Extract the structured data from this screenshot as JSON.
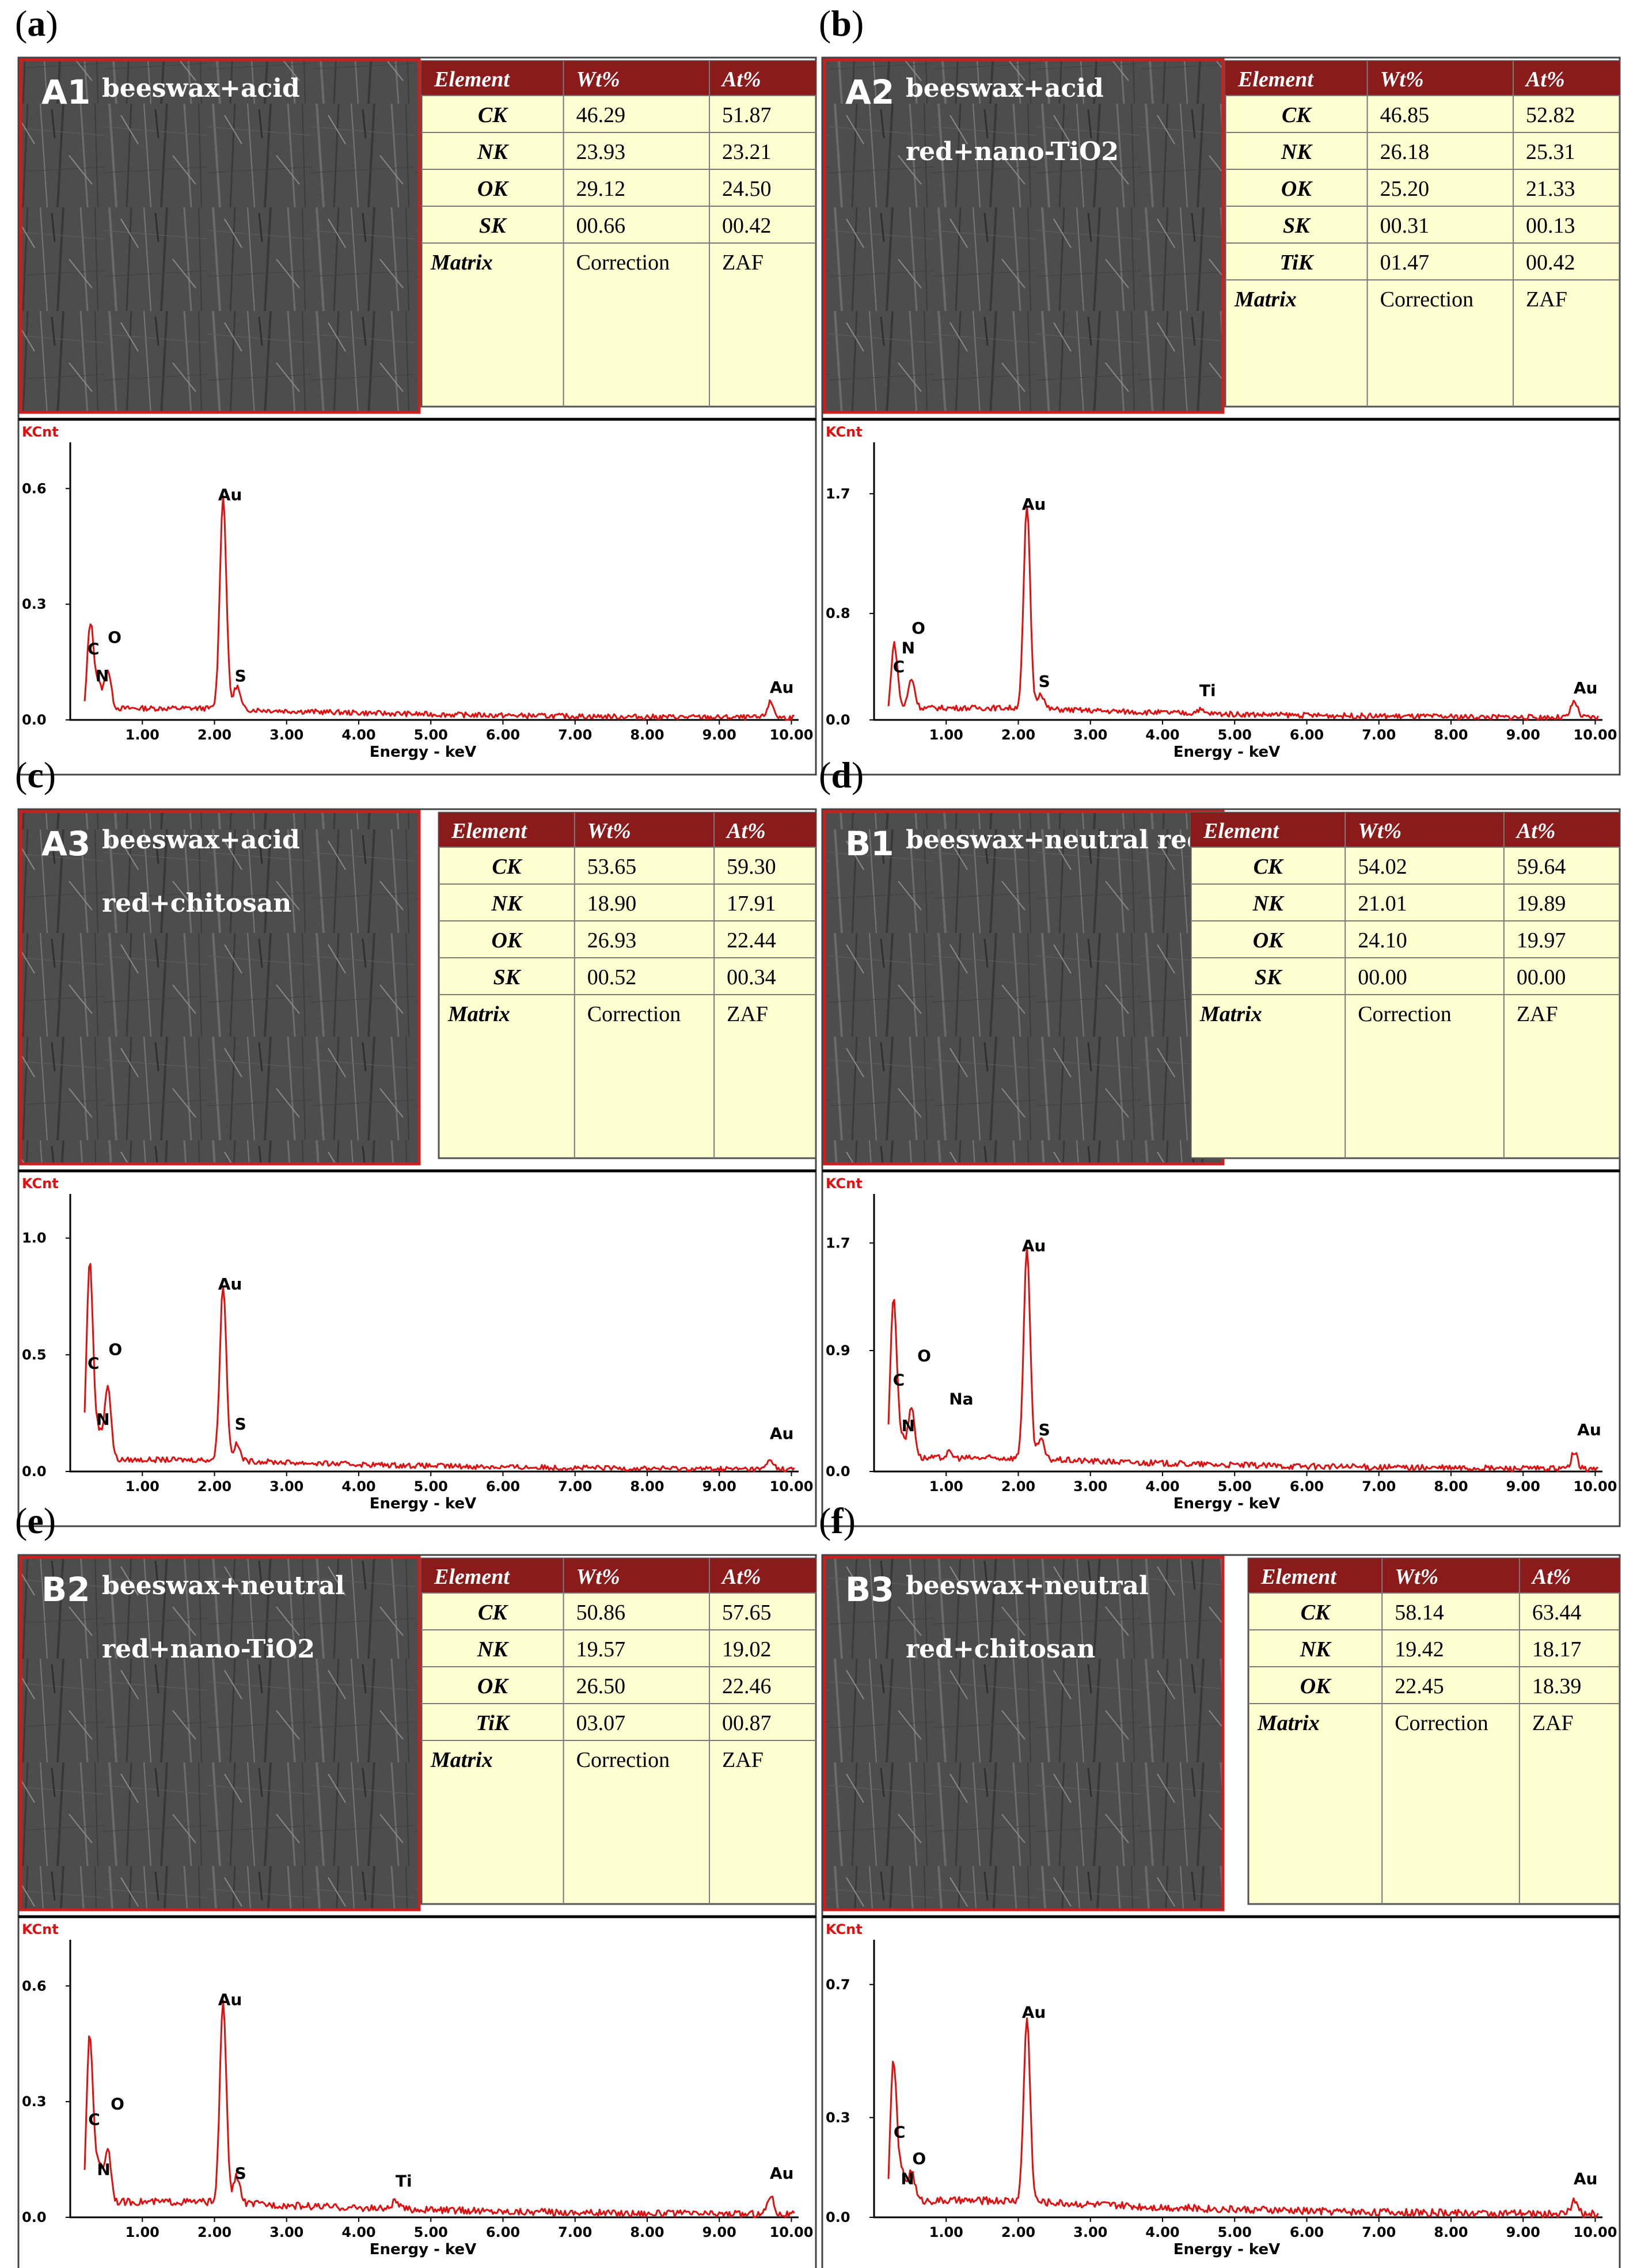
{
  "colors": {
    "accent": "#8b1a1a",
    "table_body": "#fefed0",
    "spectrum": "#e01010",
    "sem_border": "#cc2020"
  },
  "panels": [
    {
      "label": "(a)",
      "letter": "a",
      "sample_id": "A1",
      "sample_lines": [
        "beeswax+acid"
      ],
      "table": {
        "headers": [
          "Element",
          "Wt%",
          "At%"
        ],
        "rows": [
          [
            "CK",
            "46.29",
            "51.87"
          ],
          [
            "NK",
            "23.93",
            "23.21"
          ],
          [
            "OK",
            "29.12",
            "24.50"
          ],
          [
            "SK",
            "00.66",
            "00.42"
          ]
        ],
        "footer": [
          "Matrix",
          "Correction",
          "ZAF"
        ]
      }
    },
    {
      "label": "(b)",
      "letter": "b",
      "sample_id": "A2",
      "sample_lines": [
        "beeswax+acid",
        "red+nano-TiO2"
      ],
      "table": {
        "headers": [
          "Element",
          "Wt%",
          "At%"
        ],
        "rows": [
          [
            "CK",
            "46.85",
            "52.82"
          ],
          [
            "NK",
            "26.18",
            "25.31"
          ],
          [
            "OK",
            "25.20",
            "21.33"
          ],
          [
            "SK",
            "00.31",
            "00.13"
          ],
          [
            "TiK",
            "01.47",
            "00.42"
          ]
        ],
        "footer": [
          "Matrix",
          "Correction",
          "ZAF"
        ]
      }
    },
    {
      "label": "(c)",
      "letter": "c",
      "sample_id": "A3",
      "sample_lines": [
        "beeswax+acid",
        "red+chitosan"
      ],
      "table": {
        "headers": [
          "Element",
          "Wt%",
          "At%"
        ],
        "rows": [
          [
            "CK",
            "53.65",
            "59.30"
          ],
          [
            "NK",
            "18.90",
            "17.91"
          ],
          [
            "OK",
            "26.93",
            "22.44"
          ],
          [
            "SK",
            "00.52",
            "00.34"
          ]
        ],
        "footer": [
          "Matrix",
          "Correction",
          "ZAF"
        ]
      }
    },
    {
      "label": "(d)",
      "letter": "d",
      "sample_id": "B1",
      "sample_lines": [
        "beeswax+neutral red"
      ],
      "table": {
        "headers": [
          "Element",
          "Wt%",
          "At%"
        ],
        "rows": [
          [
            "CK",
            "54.02",
            "59.64"
          ],
          [
            "NK",
            "21.01",
            "19.89"
          ],
          [
            "OK",
            "24.10",
            "19.97"
          ],
          [
            "SK",
            "00.00",
            "00.00"
          ]
        ],
        "footer": [
          "Matrix",
          "Correction",
          "ZAF"
        ]
      }
    },
    {
      "label": "(e)",
      "letter": "e",
      "sample_id": "B2",
      "sample_lines": [
        "beeswax+neutral",
        "red+nano-TiO2"
      ],
      "table": {
        "headers": [
          "Element",
          "Wt%",
          "At%"
        ],
        "rows": [
          [
            "CK",
            "50.86",
            "57.65"
          ],
          [
            "NK",
            "19.57",
            "19.02"
          ],
          [
            "OK",
            "26.50",
            "22.46"
          ],
          [
            "TiK",
            "03.07",
            "00.87"
          ]
        ],
        "footer": [
          "Matrix",
          "Correction",
          "ZAF"
        ]
      }
    },
    {
      "label": "(f)",
      "letter": "f",
      "sample_id": "B3",
      "sample_lines": [
        "beeswax+neutral",
        "red+chitosan"
      ],
      "table": {
        "headers": [
          "Element",
          "Wt%",
          "At%"
        ],
        "rows": [
          [
            "CK",
            "58.14",
            "63.44"
          ],
          [
            "NK",
            "19.42",
            "18.17"
          ],
          [
            "OK",
            "22.45",
            "18.39"
          ]
        ],
        "footer": [
          "Matrix",
          "Correction",
          "ZAF"
        ]
      }
    }
  ],
  "chart_data": [
    {
      "type": "line",
      "panel": "a",
      "ylabel": "KCnt",
      "xlabel": "Energy - keV",
      "xlim": [
        0,
        10.1
      ],
      "ylim": [
        0,
        0.69
      ],
      "yticks": [
        "0.0",
        "0.3",
        "0.6"
      ],
      "ytick_values": [
        0,
        0.3,
        0.6
      ],
      "xticks": [
        "1.00",
        "2.00",
        "3.00",
        "4.00",
        "5.00",
        "6.00",
        "7.00",
        "8.00",
        "9.00",
        "10.00"
      ],
      "peaks": [
        {
          "label": "C",
          "x": 0.28,
          "y": 0.22
        },
        {
          "label": "O",
          "x": 0.52,
          "y": 0.1
        },
        {
          "label": "N",
          "x": 0.39,
          "y": 0.06
        },
        {
          "label": "Au",
          "x": 2.12,
          "y": 0.55
        },
        {
          "label": "S",
          "x": 2.31,
          "y": 0.06
        },
        {
          "label": "Au",
          "x": 9.71,
          "y": 0.04
        }
      ],
      "background": 0.03,
      "annotations": [
        {
          "text": "C",
          "x": 0.24,
          "y": 0.17
        },
        {
          "text": "N",
          "x": 0.35,
          "y": 0.1
        },
        {
          "text": "O",
          "x": 0.52,
          "y": 0.2
        },
        {
          "text": "Au",
          "x": 2.05,
          "y": 0.57
        },
        {
          "text": "S",
          "x": 2.28,
          "y": 0.1
        },
        {
          "text": "Au",
          "x": 9.7,
          "y": 0.07
        }
      ]
    },
    {
      "type": "line",
      "panel": "b",
      "ylabel": "KCnt",
      "xlabel": "Energy - keV",
      "xlim": [
        0,
        10.1
      ],
      "ylim": [
        0,
        2.0
      ],
      "yticks": [
        "0.0",
        "0.8",
        "1.7"
      ],
      "ytick_values": [
        0,
        0.8,
        1.7
      ],
      "xticks": [
        "1.00",
        "2.00",
        "3.00",
        "4.00",
        "5.00",
        "6.00",
        "7.00",
        "8.00",
        "9.00",
        "10.00"
      ],
      "peaks": [
        {
          "label": "C",
          "x": 0.28,
          "y": 0.48
        },
        {
          "label": "O",
          "x": 0.52,
          "y": 0.22
        },
        {
          "label": "Au",
          "x": 2.12,
          "y": 1.52
        },
        {
          "label": "S",
          "x": 2.31,
          "y": 0.12
        },
        {
          "label": "Ti",
          "x": 4.51,
          "y": 0.03
        },
        {
          "label": "Au",
          "x": 9.71,
          "y": 0.12
        }
      ],
      "background": 0.09,
      "annotations": [
        {
          "text": "C",
          "x": 0.26,
          "y": 0.36
        },
        {
          "text": "N",
          "x": 0.38,
          "y": 0.5
        },
        {
          "text": "O",
          "x": 0.52,
          "y": 0.65
        },
        {
          "text": "Au",
          "x": 2.05,
          "y": 1.58
        },
        {
          "text": "S",
          "x": 2.28,
          "y": 0.25
        },
        {
          "text": "Ti",
          "x": 4.51,
          "y": 0.18
        },
        {
          "text": "Au",
          "x": 9.7,
          "y": 0.2
        }
      ]
    },
    {
      "type": "line",
      "panel": "c",
      "ylabel": "KCnt",
      "xlabel": "Energy - keV",
      "xlim": [
        0,
        10.1
      ],
      "ylim": [
        0,
        1.14
      ],
      "yticks": [
        "0.0",
        "0.5",
        "1.0"
      ],
      "ytick_values": [
        0,
        0.5,
        1.0
      ],
      "xticks": [
        "1.00",
        "2.00",
        "3.00",
        "4.00",
        "5.00",
        "6.00",
        "7.00",
        "8.00",
        "9.00",
        "10.00"
      ],
      "peaks": [
        {
          "label": "C",
          "x": 0.27,
          "y": 0.85
        },
        {
          "label": "O",
          "x": 0.52,
          "y": 0.32
        },
        {
          "label": "N",
          "x": 0.39,
          "y": 0.12
        },
        {
          "label": "Au",
          "x": 2.12,
          "y": 0.75
        },
        {
          "label": "S",
          "x": 2.31,
          "y": 0.07
        },
        {
          "label": "Au",
          "x": 9.71,
          "y": 0.04
        }
      ],
      "background": 0.05,
      "annotations": [
        {
          "text": "C",
          "x": 0.24,
          "y": 0.44
        },
        {
          "text": "N",
          "x": 0.36,
          "y": 0.2
        },
        {
          "text": "O",
          "x": 0.53,
          "y": 0.5
        },
        {
          "text": "Au",
          "x": 2.05,
          "y": 0.78
        },
        {
          "text": "S",
          "x": 2.28,
          "y": 0.18
        },
        {
          "text": "Au",
          "x": 9.7,
          "y": 0.14
        }
      ]
    },
    {
      "type": "line",
      "panel": "d",
      "ylabel": "KCnt",
      "xlabel": "Energy - keV",
      "xlim": [
        0,
        10.1
      ],
      "ylim": [
        0,
        1.98
      ],
      "yticks": [
        "0.0",
        "0.9",
        "1.7"
      ],
      "ytick_values": [
        0,
        0.9,
        1.7
      ],
      "xticks": [
        "1.00",
        "2.00",
        "3.00",
        "4.00",
        "5.00",
        "6.00",
        "7.00",
        "8.00",
        "9.00",
        "10.00"
      ],
      "peaks": [
        {
          "label": "C",
          "x": 0.27,
          "y": 1.2
        },
        {
          "label": "O",
          "x": 0.52,
          "y": 0.38
        },
        {
          "label": "N",
          "x": 0.39,
          "y": 0.15
        },
        {
          "label": "Na",
          "x": 1.04,
          "y": 0.04
        },
        {
          "label": "Au",
          "x": 2.12,
          "y": 1.55
        },
        {
          "label": "S",
          "x": 2.31,
          "y": 0.15
        },
        {
          "label": "Au",
          "x": 9.71,
          "y": 0.12
        }
      ],
      "background": 0.1,
      "annotations": [
        {
          "text": "C",
          "x": 0.26,
          "y": 0.64
        },
        {
          "text": "N",
          "x": 0.38,
          "y": 0.3
        },
        {
          "text": "O",
          "x": 0.6,
          "y": 0.82
        },
        {
          "text": "Na",
          "x": 1.04,
          "y": 0.5
        },
        {
          "text": "Au",
          "x": 2.05,
          "y": 1.64
        },
        {
          "text": "S",
          "x": 2.28,
          "y": 0.27
        },
        {
          "text": "Au",
          "x": 9.75,
          "y": 0.27
        }
      ]
    },
    {
      "type": "line",
      "panel": "e",
      "ylabel": "KCnt",
      "xlabel": "Energy - keV",
      "xlim": [
        0,
        10.1
      ],
      "ylim": [
        0,
        0.69
      ],
      "yticks": [
        "0.0",
        "0.3",
        "0.6"
      ],
      "ytick_values": [
        0,
        0.3,
        0.6
      ],
      "xticks": [
        "1.00",
        "2.00",
        "3.00",
        "4.00",
        "5.00",
        "6.00",
        "7.00",
        "8.00",
        "9.00",
        "10.00"
      ],
      "peaks": [
        {
          "label": "C",
          "x": 0.27,
          "y": 0.43
        },
        {
          "label": "O",
          "x": 0.52,
          "y": 0.14
        },
        {
          "label": "N",
          "x": 0.39,
          "y": 0.1
        },
        {
          "label": "Au",
          "x": 2.12,
          "y": 0.52
        },
        {
          "label": "S",
          "x": 2.31,
          "y": 0.07
        },
        {
          "label": "Ti",
          "x": 4.51,
          "y": 0.02
        },
        {
          "label": "Au",
          "x": 9.71,
          "y": 0.05
        }
      ],
      "background": 0.04,
      "annotations": [
        {
          "text": "C",
          "x": 0.25,
          "y": 0.24
        },
        {
          "text": "N",
          "x": 0.37,
          "y": 0.11
        },
        {
          "text": "O",
          "x": 0.56,
          "y": 0.28
        },
        {
          "text": "Au",
          "x": 2.05,
          "y": 0.55
        },
        {
          "text": "S",
          "x": 2.28,
          "y": 0.1
        },
        {
          "text": "Ti",
          "x": 4.51,
          "y": 0.08
        },
        {
          "text": "Au",
          "x": 9.7,
          "y": 0.1
        }
      ]
    },
    {
      "type": "line",
      "panel": "f",
      "ylabel": "KCnt",
      "xlabel": "Energy - keV",
      "xlim": [
        0,
        10.1
      ],
      "ylim": [
        0,
        0.8
      ],
      "yticks": [
        "0.0",
        "0.3",
        "0.7"
      ],
      "ytick_values": [
        0,
        0.3,
        0.7
      ],
      "xticks": [
        "1.00",
        "2.00",
        "3.00",
        "4.00",
        "5.00",
        "6.00",
        "7.00",
        "8.00",
        "9.00",
        "10.00"
      ],
      "peaks": [
        {
          "label": "C",
          "x": 0.27,
          "y": 0.42
        },
        {
          "label": "O",
          "x": 0.52,
          "y": 0.09
        },
        {
          "label": "N",
          "x": 0.39,
          "y": 0.08
        },
        {
          "label": "Au",
          "x": 2.12,
          "y": 0.55
        },
        {
          "label": "Au",
          "x": 9.71,
          "y": 0.04
        }
      ],
      "background": 0.05,
      "annotations": [
        {
          "text": "C",
          "x": 0.27,
          "y": 0.24
        },
        {
          "text": "N",
          "x": 0.37,
          "y": 0.1
        },
        {
          "text": "O",
          "x": 0.53,
          "y": 0.16
        },
        {
          "text": "Au",
          "x": 2.05,
          "y": 0.6
        },
        {
          "text": "Au",
          "x": 9.7,
          "y": 0.1
        }
      ]
    }
  ]
}
